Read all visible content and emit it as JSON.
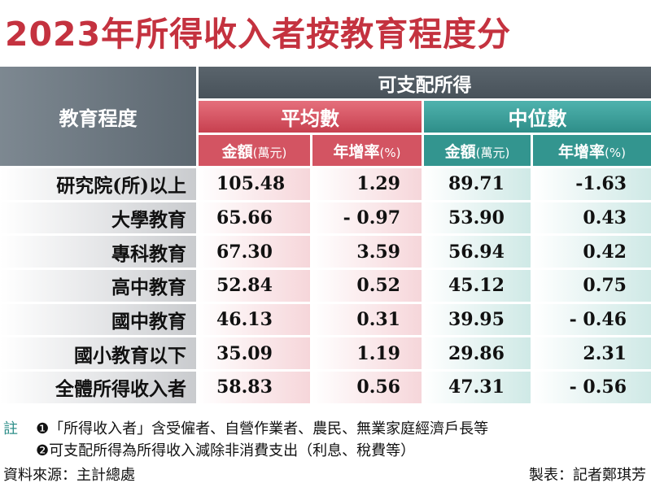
{
  "title": "2023年所得收入者按教育程度分",
  "headers": {
    "education": "教育程度",
    "disposable_income": "可支配所得",
    "average": "平均數",
    "median": "中位數",
    "amount_label": "金額",
    "amount_unit": "(萬元)",
    "growth_label": "年增率",
    "growth_unit": "(%)"
  },
  "rows": [
    {
      "level": "研究院(所)以上",
      "avg_amount": "105.48",
      "avg_growth": "1.29",
      "med_amount": "89.71",
      "med_growth": "-1.63"
    },
    {
      "level": "大學教育",
      "avg_amount": "65.66",
      "avg_growth": "- 0.97",
      "med_amount": "53.90",
      "med_growth": "0.43"
    },
    {
      "level": "專科教育",
      "avg_amount": "67.30",
      "avg_growth": "3.59",
      "med_amount": "56.94",
      "med_growth": "0.42"
    },
    {
      "level": "高中教育",
      "avg_amount": "52.84",
      "avg_growth": "0.52",
      "med_amount": "45.12",
      "med_growth": "0.75"
    },
    {
      "level": "國中教育",
      "avg_amount": "46.13",
      "avg_growth": "0.31",
      "med_amount": "39.95",
      "med_growth": "- 0.46"
    },
    {
      "level": "國小教育以下",
      "avg_amount": "35.09",
      "avg_growth": "1.19",
      "med_amount": "29.86",
      "med_growth": "2.31"
    },
    {
      "level": "全體所得收入者",
      "avg_amount": "58.83",
      "avg_growth": "0.56",
      "med_amount": "47.31",
      "med_growth": "- 0.56"
    }
  ],
  "notes": {
    "label": "註",
    "note1": "❶「所得收入者」含受僱者、自營作業者、農民、無業家庭經濟戶長等",
    "note2": "❷可支配所得為所得收入減除非消費支出（利息、稅費等）"
  },
  "footer": {
    "source": "資料來源：主計總處",
    "credit": "製表：記者鄭琪芳"
  },
  "colors": {
    "title": "#c4323f",
    "average_header": "#d35462",
    "median_header": "#33958f",
    "dark_header": "#505a62"
  }
}
